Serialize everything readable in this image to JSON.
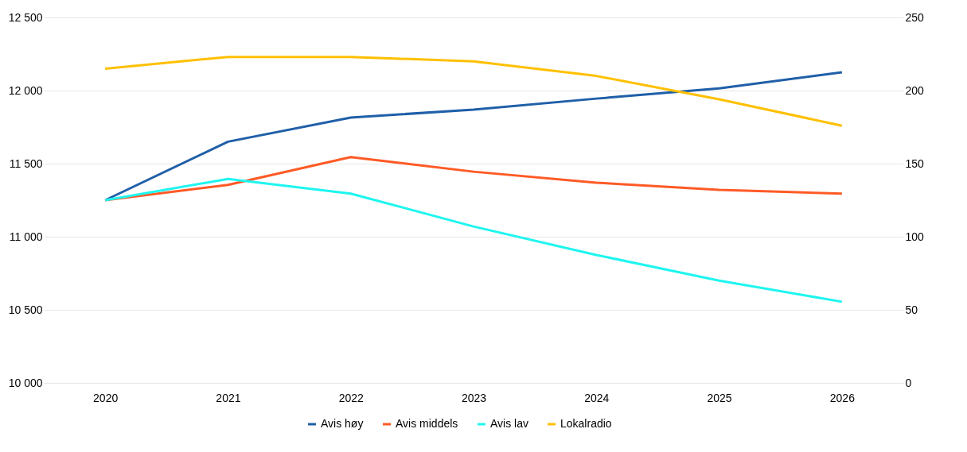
{
  "chart_data": {
    "type": "line",
    "categories": [
      "2020",
      "2021",
      "2022",
      "2023",
      "2024",
      "2025",
      "2026"
    ],
    "series": [
      {
        "name": "Avis høy",
        "color": "#1f5fa8",
        "values": [
          11250,
          11650,
          11815,
          11870,
          11945,
          12015,
          12125
        ]
      },
      {
        "name": "Avis middels",
        "color": "#ff5a26",
        "values": [
          11250,
          11355,
          11545,
          11445,
          11370,
          11320,
          11295
        ]
      },
      {
        "name": "Avis lav",
        "color": "#1ff5f0",
        "values": [
          11250,
          11395,
          11295,
          11070,
          10875,
          10700,
          10555
        ]
      },
      {
        "name": "Lokalradio",
        "color": "#ffc000",
        "axis": "y2",
        "values": [
          215,
          223,
          223,
          220,
          210,
          194,
          176
        ]
      }
    ],
    "ylim": [
      10000,
      12500
    ],
    "yticks": [
      {
        "value": 10000,
        "label": "10 000"
      },
      {
        "value": 10500,
        "label": "10 500"
      },
      {
        "value": 11000,
        "label": "11 000"
      },
      {
        "value": 11500,
        "label": "11 500"
      },
      {
        "value": 12000,
        "label": "12 000"
      },
      {
        "value": 12500,
        "label": "12 500"
      }
    ],
    "y2lim": [
      0,
      250
    ],
    "y2ticks": [
      0,
      50,
      100,
      150,
      200,
      250
    ],
    "grid": "y",
    "legend": "bottom",
    "marker": "none",
    "line_style": "solid"
  }
}
